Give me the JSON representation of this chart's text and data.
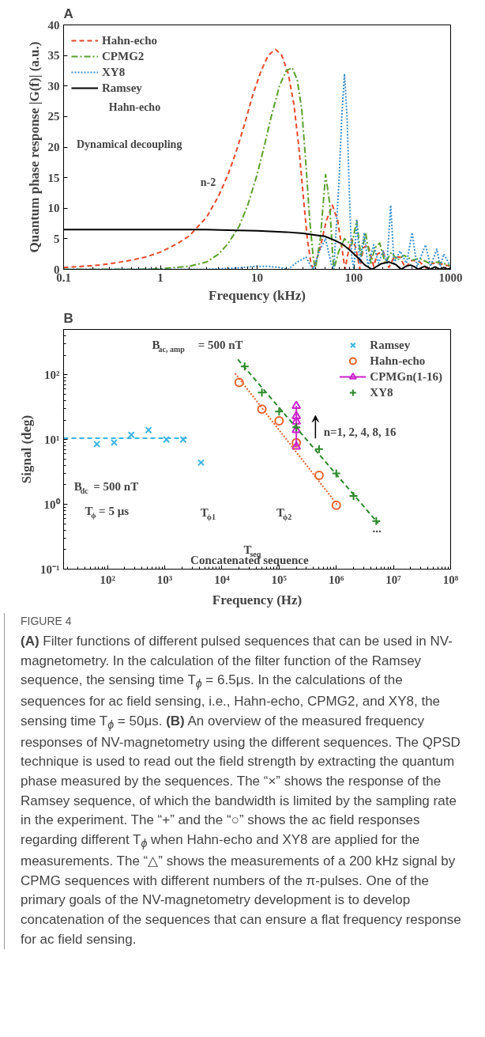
{
  "chart_data": [
    {
      "type": "line",
      "title": "A",
      "xlabel": "Frequency (kHz)",
      "ylabel": "Quantum phase response |G(f)| (a.u.)",
      "log": "x",
      "xlim": [
        0.1,
        1000
      ],
      "xticks": [
        0.1,
        1,
        10,
        100,
        1000
      ],
      "ylim": [
        0,
        40
      ],
      "yticks": [
        0,
        5,
        10,
        15,
        20,
        25,
        30,
        35,
        40
      ],
      "legend": "top left",
      "annotations": [
        "Hahn-echo",
        "Dynamical decoupling",
        "n-2"
      ],
      "series": [
        {
          "name": "Hahn-echo",
          "color": "#e8472a",
          "line_style": "dashed",
          "x": [
            0.1,
            0.2,
            0.3,
            0.5,
            0.7,
            1,
            1.5,
            2,
            3,
            4,
            5,
            6,
            7.5,
            9,
            11,
            13,
            15.5,
            18,
            21,
            24,
            27,
            30,
            33,
            36,
            38,
            44,
            52,
            60,
            68,
            76,
            81,
            88,
            95,
            105,
            115,
            125,
            140,
            160,
            175,
            200,
            230,
            260,
            300,
            340,
            400,
            480,
            560,
            650,
            780,
            1000
          ],
          "values": [
            0.3,
            0.6,
            0.9,
            1.5,
            2.0,
            2.8,
            4.2,
            5.5,
            8.5,
            12,
            15.5,
            19,
            24,
            28.5,
            32.5,
            35,
            36,
            35,
            32,
            27,
            20,
            12,
            5,
            1,
            0,
            3,
            8,
            10.5,
            8,
            3,
            0,
            3,
            5,
            3.5,
            0,
            3.5,
            4,
            0.5,
            2.5,
            3,
            0.3,
            2,
            2,
            0.3,
            1.5,
            1.2,
            0.2,
            1,
            0.9,
            0.5
          ]
        },
        {
          "name": "CPMG2",
          "color": "#5aa02c",
          "line_style": "dashdot",
          "x": [
            0.1,
            0.3,
            0.6,
            1,
            2,
            3,
            4,
            5,
            6.5,
            8,
            10,
            12,
            14,
            17,
            20,
            23,
            26,
            29,
            32,
            35,
            38,
            40,
            45,
            51,
            56,
            60,
            62,
            70,
            80,
            95,
            107,
            118,
            132,
            150,
            165,
            185,
            210,
            245,
            280,
            330,
            400,
            480,
            600,
            750,
            1000
          ],
          "values": [
            0,
            0,
            0,
            0.1,
            0.5,
            1.2,
            2.5,
            4.2,
            7,
            10.5,
            15.5,
            20.5,
            25,
            30,
            32.5,
            33,
            31,
            26,
            17,
            8,
            2,
            0,
            5,
            15.5,
            11,
            3,
            0,
            3,
            5,
            4,
            8,
            2,
            6,
            1,
            3.5,
            4.3,
            1,
            2.8,
            1.5,
            2.3,
            1.5,
            1.8,
            1,
            1.2,
            0.6
          ]
        },
        {
          "name": "XY8",
          "color": "#3a8fd0",
          "line_style": "dotted",
          "x": [
            0.1,
            1,
            3,
            6,
            10,
            13,
            17,
            21,
            26,
            32,
            36,
            38,
            44,
            51,
            58,
            62,
            70,
            75,
            80,
            85,
            90,
            95,
            100,
            107,
            115,
            128,
            140,
            160,
            180,
            200,
            220,
            240,
            260,
            300,
            350,
            400,
            450,
            550,
            620,
            720,
            780,
            850,
            1000
          ],
          "values": [
            0,
            0,
            0,
            0.2,
            0.5,
            0.5,
            0.3,
            0,
            1.2,
            2,
            0.5,
            0,
            3,
            5,
            1,
            0,
            14,
            25,
            32,
            25,
            12,
            2,
            0,
            8,
            1,
            6,
            0.5,
            4,
            1,
            3,
            1,
            10.5,
            1,
            3,
            1,
            6,
            0.5,
            4,
            0.5,
            3.3,
            0.5,
            2.5,
            0.5
          ]
        },
        {
          "name": "Ramsey",
          "color": "#000000",
          "line_style": "solid",
          "x": [
            0.1,
            1,
            3,
            5,
            10,
            20,
            30,
            40,
            50,
            60,
            75,
            90,
            110,
            130,
            154,
            190,
            230,
            270,
            308,
            345,
            385,
            425,
            462,
            540,
            615,
            690,
            770,
            850,
            923,
            1000
          ],
          "values": [
            6.5,
            6.5,
            6.5,
            6.4,
            6.3,
            6.1,
            5.9,
            5.6,
            5.4,
            4.9,
            4.2,
            3.2,
            1.9,
            0.7,
            0,
            0.9,
            1.2,
            0.8,
            0,
            0.5,
            0.7,
            0.4,
            0,
            0.5,
            0,
            0.4,
            0,
            0.3,
            0,
            0.2
          ]
        }
      ]
    },
    {
      "type": "scatter",
      "title": "B",
      "xlabel": "Frequency (Hz)",
      "ylabel": "Signal (deg)",
      "log": "xy",
      "xlim": [
        17,
        100000000
      ],
      "ylim": [
        0.1,
        500
      ],
      "xticks": [
        {
          "value": 100,
          "label": "10²"
        },
        {
          "value": 1000,
          "label": "10³"
        },
        {
          "value": 10000,
          "label": "10⁴"
        },
        {
          "value": 100000,
          "label": "10⁵"
        },
        {
          "value": 1000000,
          "label": "10⁶"
        },
        {
          "value": 10000000,
          "label": "10⁷"
        },
        {
          "value": 100000000,
          "label": "10⁸"
        }
      ],
      "yticks": [
        {
          "value": 0.1,
          "label": "10⁻¹"
        },
        {
          "value": 1,
          "label": "10⁰"
        },
        {
          "value": 10,
          "label": "10¹"
        },
        {
          "value": 100,
          "label": "10²"
        }
      ],
      "legend": "top right",
      "annotations": [
        "B$_{ac, amp}$ = 500 nT",
        "n=1, 2, 4, 8, 16",
        "B$_{dc}$ = 500 nT",
        "T$_{ϕ}$= 5 μs",
        "T$_{ϕ1}$",
        "T$_{ϕ2}$",
        "T$_{seq}$",
        "Concatenated sequence",
        "..."
      ],
      "series": [
        {
          "name": "Ramsey",
          "type": "scatter",
          "marker": "x",
          "color": "#3cb4e6",
          "x": [
            65,
            130,
            260,
            520,
            1070,
            2100,
            4300
          ],
          "values": [
            8.5,
            9,
            11.8,
            14,
            10,
            10,
            4.4
          ]
        },
        {
          "name": "Hahn-echo",
          "type": "scatter",
          "marker": "circle",
          "color": "#e8622a",
          "x": [
            20000,
            50000,
            100000,
            200000,
            500000,
            1000000
          ],
          "values": [
            76,
            29.5,
            19.5,
            8.9,
            2.8,
            0.97
          ]
        },
        {
          "name": "CPMGn(1-16)",
          "type": "line",
          "marker": "triangle",
          "line_style": "solid",
          "color": "#cc22cc",
          "x": [
            200000,
            200000,
            200000,
            200000,
            200000
          ],
          "values": [
            7.8,
            14,
            19,
            23,
            33
          ]
        },
        {
          "name": "XY8",
          "type": "scatter",
          "marker": "cross",
          "color": "#2a8a2a",
          "x": [
            25000,
            50000,
            100000,
            200000,
            500000,
            1000000,
            2000000,
            5000000
          ],
          "values": [
            134,
            53,
            27,
            15.4,
            7.1,
            3.0,
            1.35,
            0.55
          ]
        },
        {
          "type": "line",
          "line_style": "dashed",
          "color": "#3cb4e6",
          "x": [
            17,
            2500
          ],
          "values": [
            10.5,
            10.5
          ]
        },
        {
          "type": "line",
          "line_style": "dotted",
          "color": "#e8622a",
          "x": [
            17000,
            1070000
          ],
          "values": [
            105,
            0.95
          ]
        },
        {
          "type": "line",
          "line_style": "dashed",
          "color": "#2a8a2a",
          "x": [
            19000,
            5400000
          ],
          "values": [
            172,
            0.51
          ]
        }
      ]
    },
    {
      "type": "other",
      "title": "FIGURE 4",
      "annotations": [
        "(A) Filter functions of different pulsed sequences that can be used in NV-magnetometry. In the calculation of the filter function of the Ramsey sequence, the sensing time T$_{ϕ}$ = 6.5μs. In the calculations of the sequences for ac field sensing, i.e., Hahn-echo, CPMG2, and XY8, the sensing time T$_{ϕ}$ = 50μs. (B) An overview of the measured frequency responses of NV-magnetometry using the different sequences. The QPSD technique is used to read out the field strength by extracting the quantum phase measured by the sequences. The “×” shows the response of the Ramsey sequence, of which the bandwidth is limited by the sampling rate in the experiment. The “+” and the “○” shows the ac field responses regarding different T$_{ϕ}$ when Hahn-echo and XY8 are applied for the measurements. The “△” shows the measurements of a 200 kHz signal by CPMG sequences with different numbers of the π-pulses. One of the primary goals of the NV-magnetometry development is to develop concatenation of the sequences that can ensure a flat frequency response for ac field sensing."
      ]
    }
  ]
}
